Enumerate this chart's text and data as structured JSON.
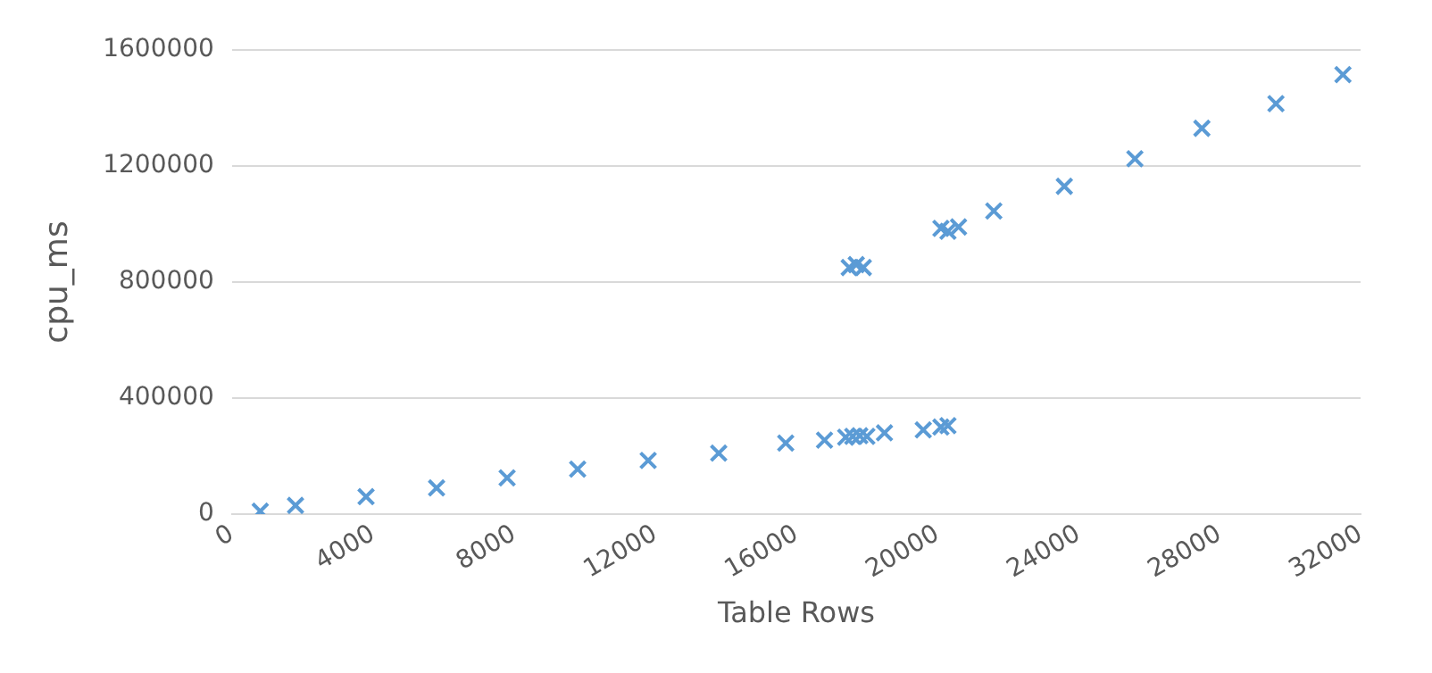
{
  "chart_data": {
    "type": "scatter",
    "xlabel": "Table Rows",
    "ylabel": "cpu_ms",
    "marker": "cross",
    "grid": "y",
    "legend": false,
    "series": [
      {
        "color": "#5b9bd5",
        "x": [
          800,
          1800,
          3800,
          5800,
          7800,
          9800,
          11800,
          13800,
          15700,
          16800,
          17400,
          17600,
          17800,
          18000,
          18500,
          19600,
          20100,
          20300,
          17500,
          17700,
          17900,
          20100,
          20300,
          20600,
          21600,
          23600,
          25600,
          27500,
          29600,
          31500
        ],
        "values": [
          10000,
          30000,
          60000,
          90000,
          125000,
          155000,
          185000,
          210000,
          245000,
          255000,
          265000,
          268000,
          270000,
          268000,
          280000,
          290000,
          300000,
          305000,
          850000,
          860000,
          850000,
          985000,
          975000,
          990000,
          1045000,
          1130000,
          1225000,
          1330000,
          1415000,
          1515000
        ]
      }
    ],
    "xlim": [
      0,
      32000
    ],
    "xticks": [
      0,
      4000,
      8000,
      12000,
      16000,
      20000,
      24000,
      28000,
      32000
    ],
    "ylim": [
      0,
      1600000
    ],
    "yticks": [
      0,
      400000,
      800000,
      1200000,
      1600000
    ]
  }
}
